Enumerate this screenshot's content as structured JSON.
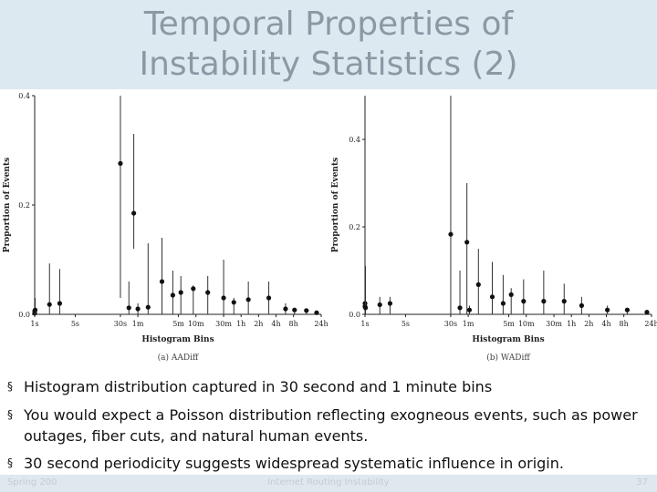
{
  "slide": {
    "title_line1": "Temporal Properties of",
    "title_line2": "Instability Statistics (2)",
    "bullets": [
      "Histogram distribution captured in 30 second and 1 minute bins",
      "You would expect a Poisson distribution reflecting exogneous events, such as power outages, fiber cuts, and natural human events.",
      "30 second periodicity suggests widespread systematic influence in origin."
    ],
    "bullet_symbol": "§",
    "footer": {
      "left": "Spring 200",
      "center": "Internet Routing Instability",
      "right": "37"
    }
  },
  "chart_data": [
    {
      "type": "scatter",
      "caption": "(a) AADiff",
      "xlabel": "Histogram Bins",
      "ylabel": "Proportion of Events",
      "ylim": [
        0.0,
        0.4
      ],
      "yticks": [
        "0.0",
        "0.2",
        "0.4"
      ],
      "xticks": [
        "1s",
        "5s",
        "30s",
        "1m",
        "5m",
        "10m",
        "30m",
        "1h",
        "2h",
        "4h",
        "8h",
        "24h"
      ],
      "points": [
        {
          "x": 0.003,
          "mean": 0.002,
          "low": 0.0,
          "high": 0.004
        },
        {
          "x": 0.009,
          "mean": 0.006,
          "low": 0.0,
          "high": 0.012
        },
        {
          "x": 0.017,
          "mean": 0.008,
          "low": 0.0,
          "high": 0.03
        },
        {
          "x": 0.03,
          "mean": 0.018,
          "low": 0.0,
          "high": 0.093
        },
        {
          "x": 0.045,
          "mean": 0.02,
          "low": 0.0,
          "high": 0.083
        },
        {
          "x": 0.5,
          "mean": 0.276,
          "low": 0.03,
          "high": 0.405
        },
        {
          "x": 0.7,
          "mean": 0.012,
          "low": 0.0,
          "high": 0.06
        },
        {
          "x": 0.85,
          "mean": 0.185,
          "low": 0.12,
          "high": 0.33
        },
        {
          "x": 1.0,
          "mean": 0.01,
          "low": 0.0,
          "high": 0.02
        },
        {
          "x": 1.5,
          "mean": 0.013,
          "low": 0.0,
          "high": 0.13
        },
        {
          "x": 2.6,
          "mean": 0.06,
          "low": 0.0,
          "high": 0.14
        },
        {
          "x": 4.0,
          "mean": 0.035,
          "low": 0.0,
          "high": 0.08
        },
        {
          "x": 5.5,
          "mean": 0.04,
          "low": 0.0,
          "high": 0.07
        },
        {
          "x": 9.0,
          "mean": 0.047,
          "low": 0.0,
          "high": 0.053
        },
        {
          "x": 16.0,
          "mean": 0.04,
          "low": 0.0,
          "high": 0.07
        },
        {
          "x": 30.0,
          "mean": 0.03,
          "low": 0.0,
          "high": 0.1
        },
        {
          "x": 45.0,
          "mean": 0.022,
          "low": 0.0,
          "high": 0.03
        },
        {
          "x": 80.0,
          "mean": 0.027,
          "low": 0.0,
          "high": 0.06
        },
        {
          "x": 180.0,
          "mean": 0.03,
          "low": 0.0,
          "high": 0.06
        },
        {
          "x": 350.0,
          "mean": 0.01,
          "low": 0.0,
          "high": 0.02
        },
        {
          "x": 500.0,
          "mean": 0.008,
          "low": 0.0,
          "high": 0.01
        },
        {
          "x": 800.0,
          "mean": 0.007,
          "low": 0.0,
          "high": 0.01
        },
        {
          "x": 1200.0,
          "mean": 0.003,
          "low": 0.0,
          "high": 0.005
        }
      ]
    },
    {
      "type": "scatter",
      "caption": "(b) WADiff",
      "xlabel": "Histogram Bins",
      "ylabel": "Proportion of Events",
      "ylim": [
        0.0,
        0.5
      ],
      "yticks": [
        "0.0",
        "0.2",
        "0.4"
      ],
      "xticks": [
        "1s",
        "5s",
        "30s",
        "1m",
        "5m",
        "10m",
        "30m",
        "1h",
        "2h",
        "4h",
        "8h",
        "24h"
      ],
      "points": [
        {
          "x": 0.003,
          "mean": 0.025,
          "low": 0.0,
          "high": 0.03
        },
        {
          "x": 0.007,
          "mean": 0.018,
          "low": 0.0,
          "high": 0.022
        },
        {
          "x": 0.017,
          "mean": 0.015,
          "low": 0.0,
          "high": 0.11
        },
        {
          "x": 0.03,
          "mean": 0.022,
          "low": 0.0,
          "high": 0.04
        },
        {
          "x": 0.045,
          "mean": 0.025,
          "low": 0.0,
          "high": 0.04
        },
        {
          "x": 0.5,
          "mean": 0.183,
          "low": 0.0,
          "high": 0.51
        },
        {
          "x": 0.72,
          "mean": 0.015,
          "low": 0.0,
          "high": 0.1
        },
        {
          "x": 0.95,
          "mean": 0.165,
          "low": 0.0,
          "high": 0.3
        },
        {
          "x": 1.05,
          "mean": 0.01,
          "low": 0.0,
          "high": 0.02
        },
        {
          "x": 1.5,
          "mean": 0.068,
          "low": 0.0,
          "high": 0.15
        },
        {
          "x": 2.6,
          "mean": 0.04,
          "low": 0.0,
          "high": 0.12
        },
        {
          "x": 4.0,
          "mean": 0.025,
          "low": 0.0,
          "high": 0.09
        },
        {
          "x": 5.5,
          "mean": 0.045,
          "low": 0.0,
          "high": 0.06
        },
        {
          "x": 9.0,
          "mean": 0.03,
          "low": 0.0,
          "high": 0.08
        },
        {
          "x": 20.0,
          "mean": 0.03,
          "low": 0.0,
          "high": 0.1
        },
        {
          "x": 45.0,
          "mean": 0.03,
          "low": 0.0,
          "high": 0.07
        },
        {
          "x": 90.0,
          "mean": 0.02,
          "low": 0.0,
          "high": 0.04
        },
        {
          "x": 250.0,
          "mean": 0.01,
          "low": 0.0,
          "high": 0.02
        },
        {
          "x": 550.0,
          "mean": 0.01,
          "low": 0.0,
          "high": 0.015
        },
        {
          "x": 1200.0,
          "mean": 0.005,
          "low": 0.0,
          "high": 0.01
        }
      ]
    }
  ]
}
